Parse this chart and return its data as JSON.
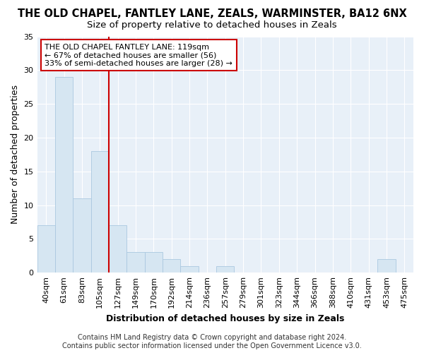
{
  "title": "THE OLD CHAPEL, FANTLEY LANE, ZEALS, WARMINSTER, BA12 6NX",
  "subtitle": "Size of property relative to detached houses in Zeals",
  "xlabel": "Distribution of detached houses by size in Zeals",
  "ylabel": "Number of detached properties",
  "categories": [
    "40sqm",
    "61sqm",
    "83sqm",
    "105sqm",
    "127sqm",
    "149sqm",
    "170sqm",
    "192sqm",
    "214sqm",
    "236sqm",
    "257sqm",
    "279sqm",
    "301sqm",
    "323sqm",
    "344sqm",
    "366sqm",
    "388sqm",
    "410sqm",
    "431sqm",
    "453sqm",
    "475sqm"
  ],
  "values": [
    7,
    29,
    11,
    18,
    7,
    3,
    3,
    2,
    1,
    0,
    1,
    0,
    0,
    0,
    0,
    0,
    0,
    0,
    0,
    2,
    0
  ],
  "bar_color": "#d6e6f2",
  "bar_edge_color": "#aac8e0",
  "red_line_x": 3.5,
  "red_line_color": "#cc0000",
  "ylim": [
    0,
    35
  ],
  "yticks": [
    0,
    5,
    10,
    15,
    20,
    25,
    30,
    35
  ],
  "annotation_text": "THE OLD CHAPEL FANTLEY LANE: 119sqm\n← 67% of detached houses are smaller (56)\n33% of semi-detached houses are larger (28) →",
  "annotation_box_color": "#ffffff",
  "annotation_box_edge": "#cc0000",
  "footer_line1": "Contains HM Land Registry data © Crown copyright and database right 2024.",
  "footer_line2": "Contains public sector information licensed under the Open Government Licence v3.0.",
  "background_color": "#ffffff",
  "plot_bg_color": "#e8f0f8",
  "grid_color": "#ffffff",
  "title_fontsize": 10.5,
  "subtitle_fontsize": 9.5,
  "axis_label_fontsize": 9,
  "tick_fontsize": 8,
  "footer_fontsize": 7,
  "annotation_fontsize": 8
}
